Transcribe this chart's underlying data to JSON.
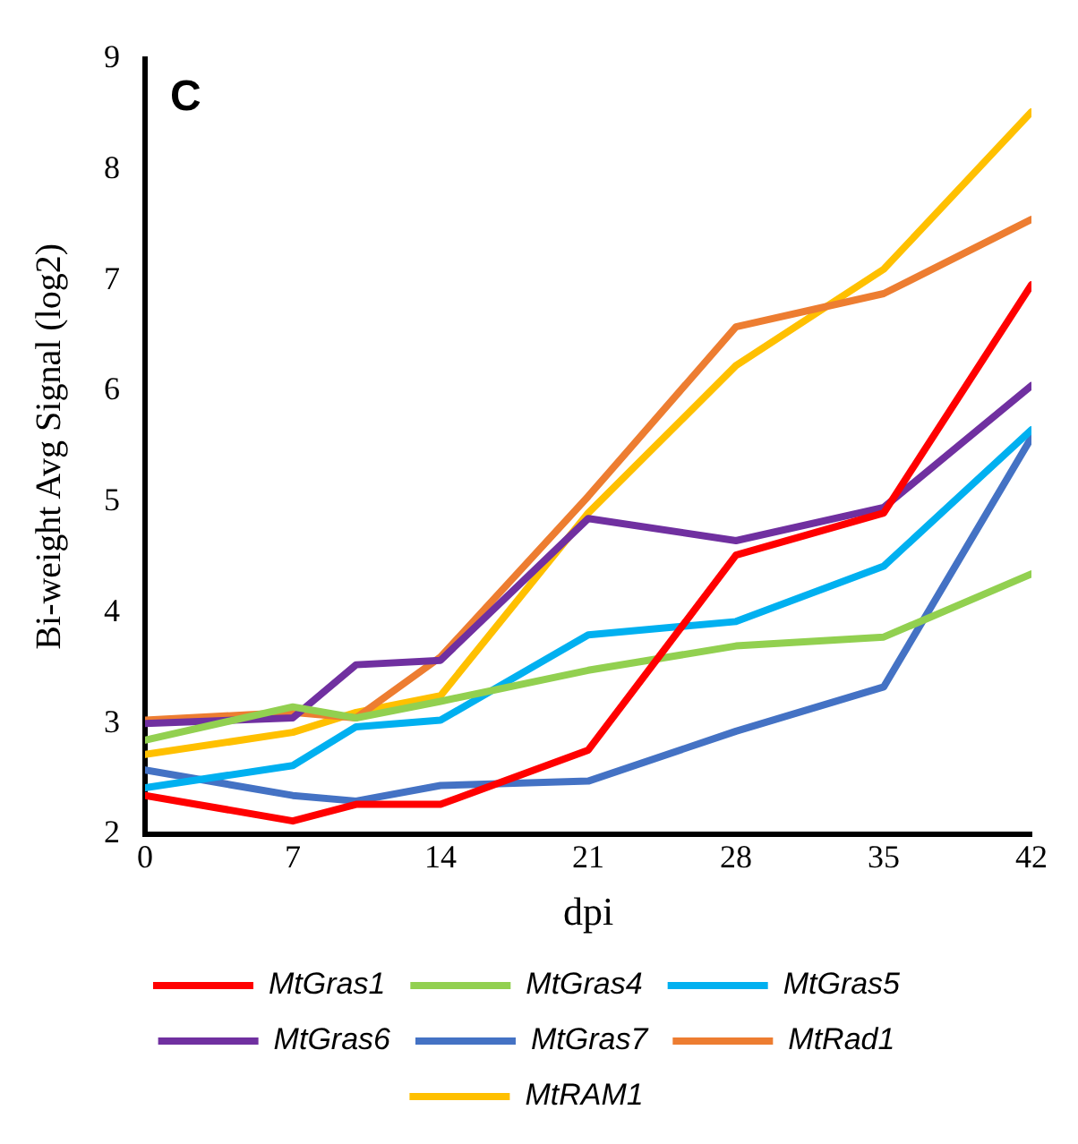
{
  "chart_data": {
    "type": "line",
    "annotations": [
      "C"
    ],
    "xlabel": "dpi",
    "ylabel": "Bi-weight Avg Signal (log2)",
    "x": [
      0,
      7,
      10,
      14,
      21,
      28,
      35,
      42
    ],
    "xlim": [
      0,
      42
    ],
    "xticks": [
      0,
      7,
      14,
      21,
      28,
      35,
      42
    ],
    "ylim": [
      2,
      9
    ],
    "yticks": [
      2,
      3,
      4,
      5,
      6,
      7,
      8,
      9
    ],
    "grid": false,
    "legend": "bottom",
    "marker": "none",
    "line_style": "solid",
    "series": [
      {
        "name": "MtGras1",
        "color": "#ff0000",
        "values": [
          2.35,
          2.12,
          2.27,
          2.27,
          2.76,
          4.52,
          4.9,
          6.96
        ]
      },
      {
        "name": "MtGras4",
        "color": "#92d050",
        "values": [
          2.85,
          3.15,
          3.05,
          3.2,
          3.48,
          3.7,
          3.78,
          4.35
        ]
      },
      {
        "name": "MtGras5",
        "color": "#00b0f0",
        "values": [
          2.42,
          2.62,
          2.97,
          3.03,
          3.8,
          3.92,
          4.42,
          5.65
        ]
      },
      {
        "name": "MtGras6",
        "color": "#7030a0",
        "values": [
          3.0,
          3.05,
          3.53,
          3.57,
          4.85,
          4.65,
          4.95,
          6.05
        ]
      },
      {
        "name": "MtGras7",
        "color": "#4472c4",
        "values": [
          2.58,
          2.35,
          2.3,
          2.44,
          2.48,
          2.93,
          3.33,
          5.58
        ]
      },
      {
        "name": "MtRad1",
        "color": "#ed7d31",
        "values": [
          3.03,
          3.1,
          3.05,
          3.6,
          5.05,
          6.58,
          6.88,
          7.55
        ]
      },
      {
        "name": "MtRAM1",
        "color": "#ffc000",
        "values": [
          2.72,
          2.92,
          3.1,
          3.25,
          4.9,
          6.23,
          7.1,
          8.52
        ]
      }
    ]
  }
}
